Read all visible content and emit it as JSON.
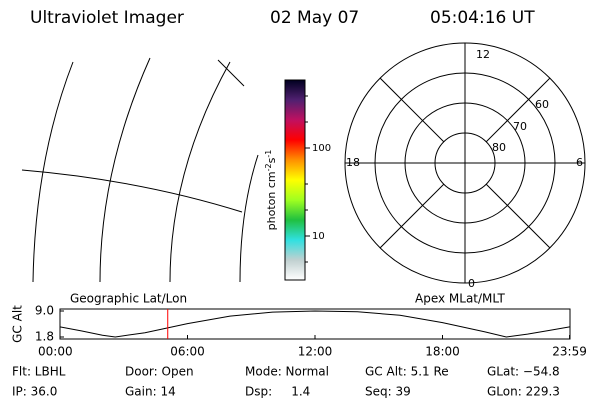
{
  "header": {
    "title": "Ultraviolet Imager",
    "date": "02 May 07",
    "time": "05:04:16 UT"
  },
  "colorbar": {
    "label": [
      "photon cm",
      "-2",
      "s",
      "-1"
    ],
    "ticks": [
      "100",
      "10"
    ]
  },
  "polar": {
    "mlt": [
      "12",
      "6",
      "0",
      "18"
    ],
    "mlat": [
      "60",
      "70",
      "80"
    ]
  },
  "timeline": {
    "ylabel": "GC Alt",
    "left_title": "Geographic Lat/Lon",
    "right_title": "Apex MLat/MLT",
    "ylim": [
      1.8,
      9.0
    ],
    "yticks": [
      {
        "value": 9.0,
        "label": "9.0"
      },
      {
        "value": 1.8,
        "label": "1.8"
      }
    ],
    "xlim": [
      0,
      24
    ],
    "xticks": [
      {
        "value": 0,
        "label": "00:00"
      },
      {
        "value": 6,
        "label": "06:00"
      },
      {
        "value": 12,
        "label": "12:00"
      },
      {
        "value": 18,
        "label": "18:00"
      },
      {
        "value": 23.98,
        "label": "23:59"
      }
    ],
    "x": [
      0,
      1,
      2,
      2.6,
      4,
      6,
      8,
      10,
      12,
      14,
      16,
      18,
      20,
      21,
      22,
      23,
      23.98
    ],
    "values": [
      4.6,
      3.5,
      2.3,
      1.8,
      3.0,
      5.5,
      7.6,
      8.7,
      9.0,
      8.8,
      7.8,
      5.8,
      3.2,
      1.8,
      2.6,
      3.6,
      4.6
    ],
    "marker_x": 5.07,
    "marker_color": "#ff0000"
  },
  "info": {
    "rows": [
      [
        "Flt: LBHL",
        "Door: Open",
        "Mode: Normal",
        "GC Alt: 5.1 Re",
        "GLat: −54.8"
      ],
      [
        "IP: 36.0",
        "Gain: 14",
        "Dsp:     1.4",
        "Seq: 39",
        "GLon: 229.3"
      ]
    ]
  }
}
